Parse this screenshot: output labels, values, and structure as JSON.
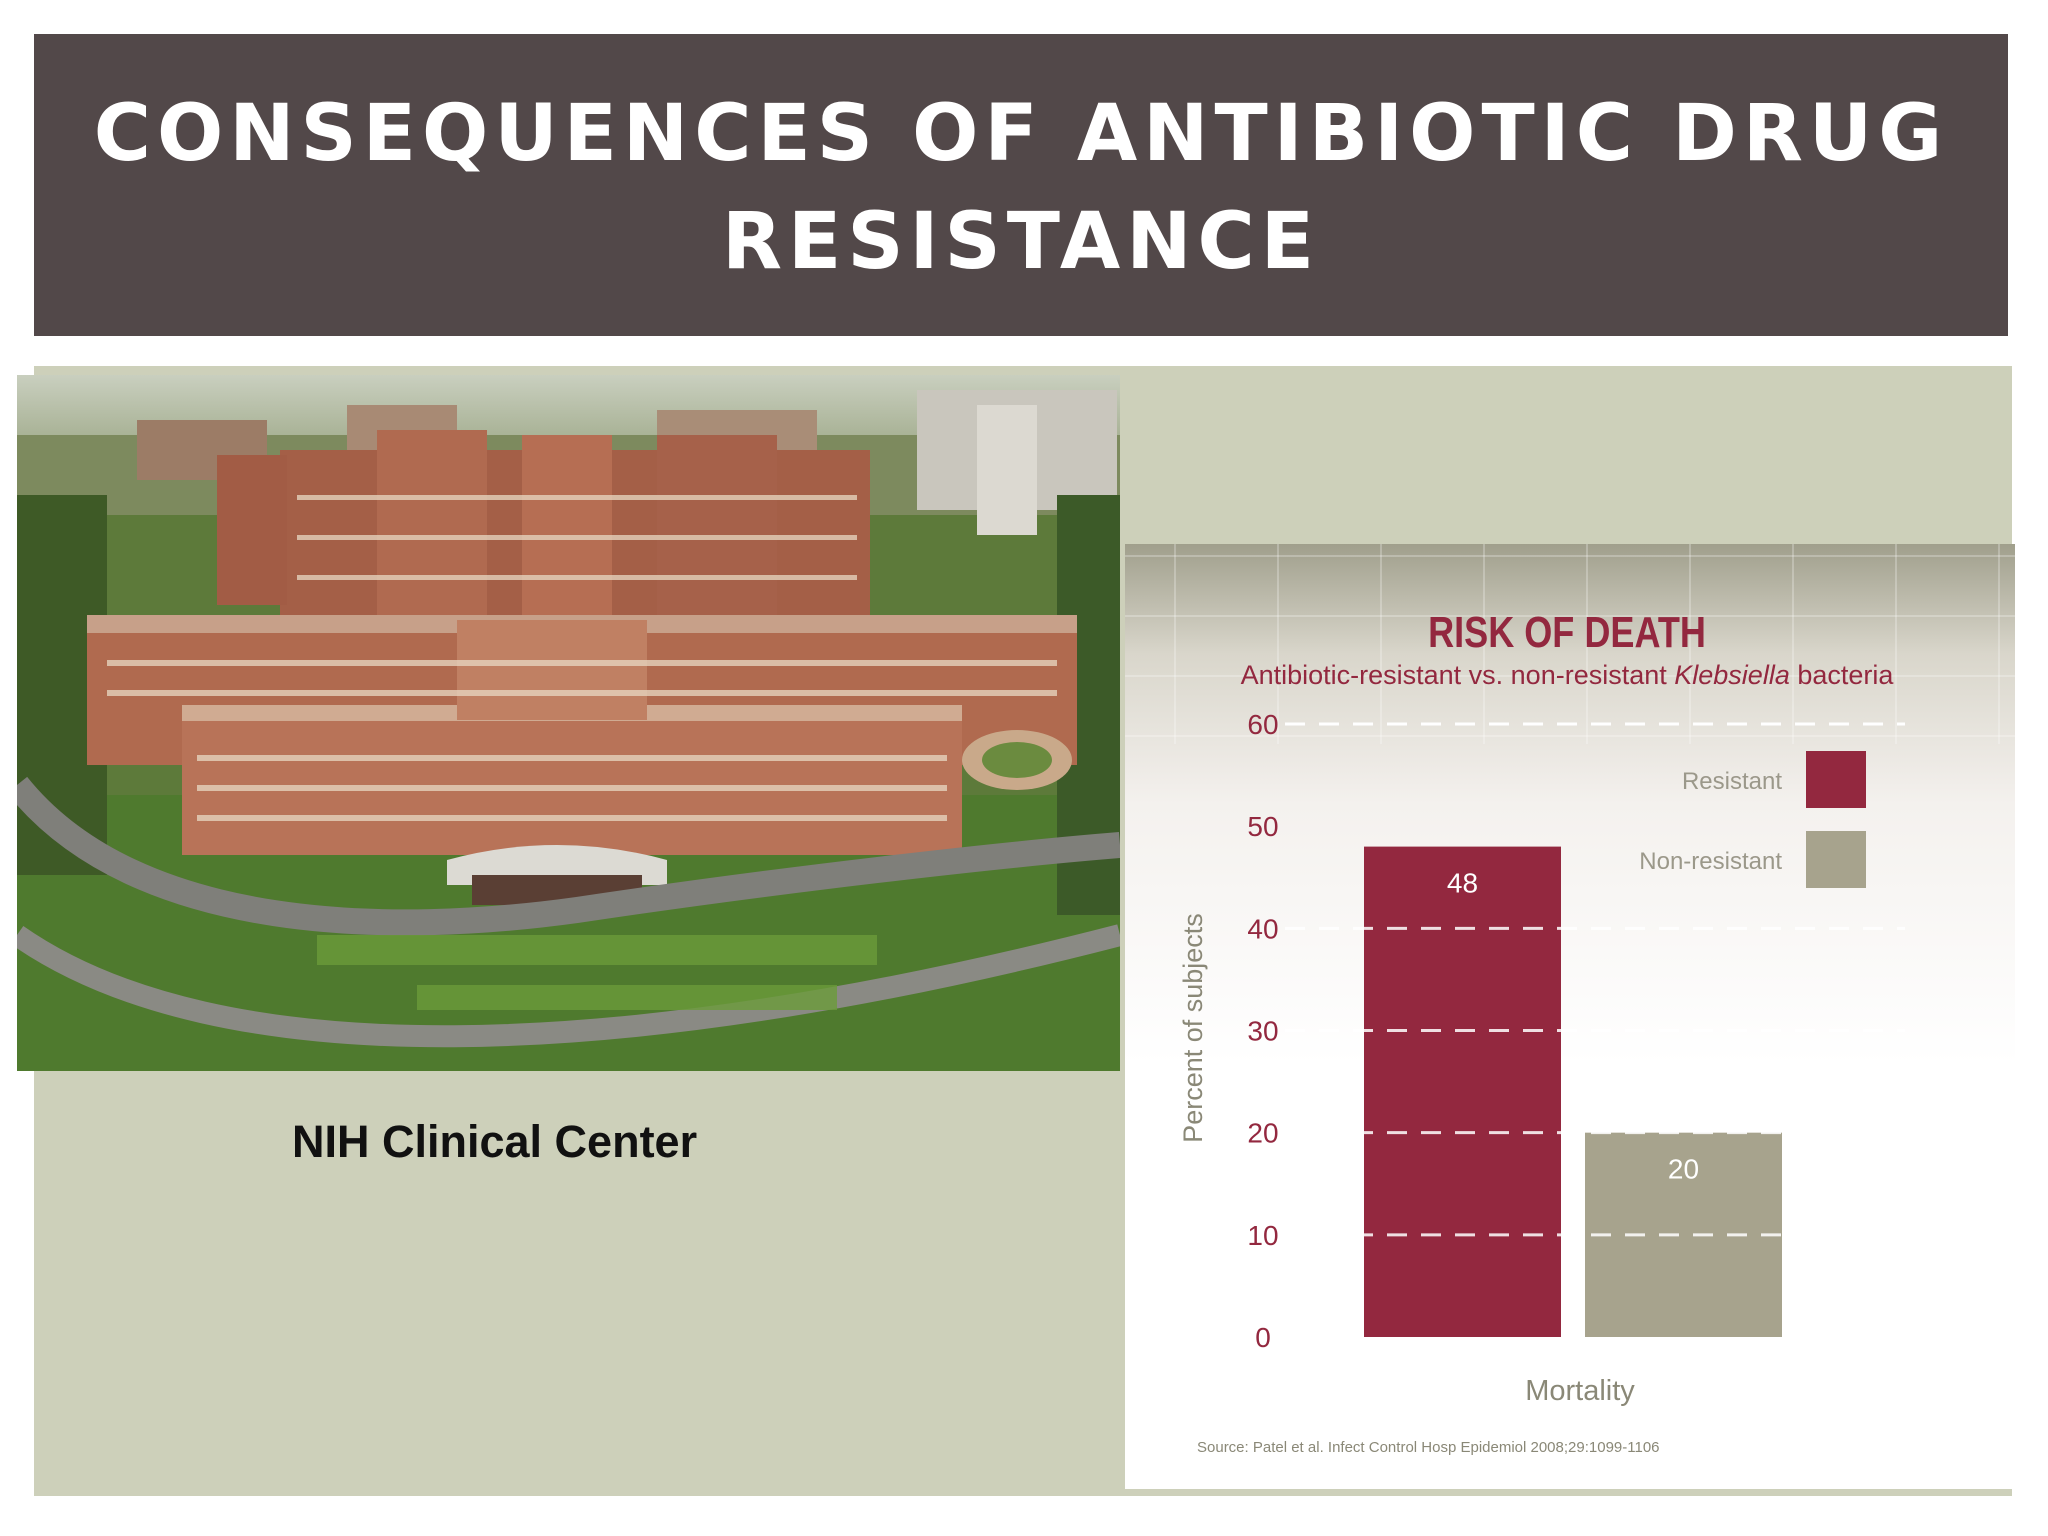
{
  "slide": {
    "title_line1": "CONSEQUENCES OF ANTIBIOTIC DRUG",
    "title_line2": "RESISTANCE",
    "photo_caption": "NIH Clinical Center",
    "colors": {
      "title_banner": "#524849",
      "content_background": "#cdd0ba",
      "title_text": "#ffffff"
    }
  },
  "chart_data": {
    "type": "bar",
    "title": "RISK OF DEATH",
    "subtitle_prefix": "Antibiotic-resistant vs. non-resistant ",
    "subtitle_italic": "Klebsiella",
    "subtitle_suffix": " bacteria",
    "xlabel": "Mortality",
    "ylabel": "Percent of subjects",
    "ylim": [
      0,
      60
    ],
    "yticks": [
      0,
      10,
      20,
      30,
      40,
      50,
      60
    ],
    "categories": [
      "Mortality"
    ],
    "series": [
      {
        "name": "Resistant",
        "values": [
          48
        ],
        "color": "#93283f"
      },
      {
        "name": "Non-resistant",
        "values": [
          20
        ],
        "color": "#a7a38d"
      }
    ],
    "grid": "dashed",
    "legend_position": "top-right",
    "source": "Source: Patel et al. Infect Control Hosp Epidemiol 2008;29:1099-1106",
    "colors": {
      "title": "#93283f",
      "tick_labels": "#93283f",
      "axis_label": "#8a8877"
    }
  }
}
